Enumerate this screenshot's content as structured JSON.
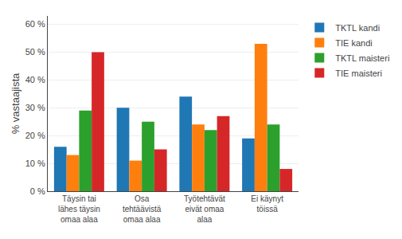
{
  "chart_data": {
    "type": "bar",
    "categories": [
      "Täysin tai\nlähes täysin\nomaa alaa",
      "Osa\ntehtäävistä\nomaa alaa",
      "Työtehtävät\neivät omaa\nalaa",
      "Ei käynyt\ntöissä"
    ],
    "series": [
      {
        "name": "TKTL kandi",
        "values": [
          16,
          30,
          34,
          19
        ]
      },
      {
        "name": "TIE kandi",
        "values": [
          13,
          11,
          24,
          53
        ]
      },
      {
        "name": "TKTL maisteri",
        "values": [
          29,
          25,
          22,
          24
        ]
      },
      {
        "name": "TIE maisteri",
        "values": [
          50,
          15,
          27,
          8
        ]
      }
    ],
    "ylabel": "% vastaajista",
    "ylim": [
      0,
      63
    ],
    "yticks": [
      {
        "value": 0,
        "label": "0 %"
      },
      {
        "value": 10,
        "label": "10 %"
      },
      {
        "value": 20,
        "label": "20 %"
      },
      {
        "value": 30,
        "label": "30 %"
      },
      {
        "value": 40,
        "label": "40 %"
      },
      {
        "value": 50,
        "label": "50 %"
      },
      {
        "value": 60,
        "label": "60 %"
      }
    ],
    "grid": true,
    "legend": "right"
  }
}
